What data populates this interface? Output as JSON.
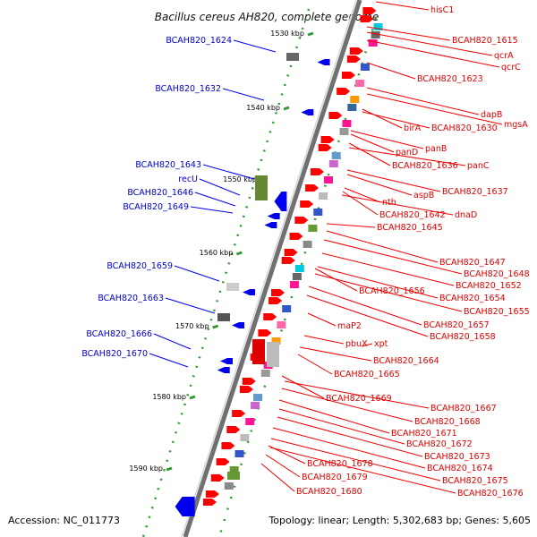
{
  "title": "Bacillus cereus AH820, complete genome",
  "accession": "Accession: NC_011773",
  "summary": "Topology: linear; Length: 5,302,683 bp; Genes: 5,605",
  "colors": {
    "forward": "#0000ee",
    "reverse": "#ee0000",
    "axis": "#808080"
  },
  "scale_labels": [
    "1530 kbp",
    "1540 kbp",
    "1550 kbp",
    "1560 kbp",
    "1570 kbp",
    "1580 kbp",
    "1590 kbp"
  ],
  "left_labels": [
    "BCAH820_1624",
    "BCAH820_1632",
    "BCAH820_1643",
    "recU",
    "BCAH820_1646",
    "BCAH820_1649",
    "BCAH820_1659",
    "BCAH820_1663",
    "BCAH820_1666",
    "BCAH820_1670"
  ],
  "right_labels": [
    "hisC1",
    "BCAH820_1615",
    "qcrA",
    "qcrC",
    "BCAH820_1623",
    "dapB",
    "mgsA",
    "birA",
    "BCAH820_1630",
    "panB",
    "panD",
    "BCAH820_1636",
    "panC",
    "BCAH820_1637",
    "aspB",
    "nth",
    "BCAH820_1642",
    "dnaD",
    "BCAH820_1645",
    "BCAH820_1647",
    "BCAH820_1648",
    "BCAH820_1652",
    "BCAH820_1656",
    "BCAH820_1654",
    "BCAH820_1655",
    "maP2",
    "BCAH820_1657",
    "BCAH820_1658",
    "pbuX",
    "xpt",
    "BCAH820_1664",
    "BCAH820_1665",
    "BCAH820_1669",
    "BCAH820_1667",
    "BCAH820_1668",
    "BCAH820_1671",
    "BCAH820_1672",
    "BCAH820_1673",
    "BCAH820_1674",
    "BCAH820_1678",
    "BCAH820_1675",
    "BCAH820_1679",
    "BCAH820_1676",
    "BCAH820_1680"
  ]
}
